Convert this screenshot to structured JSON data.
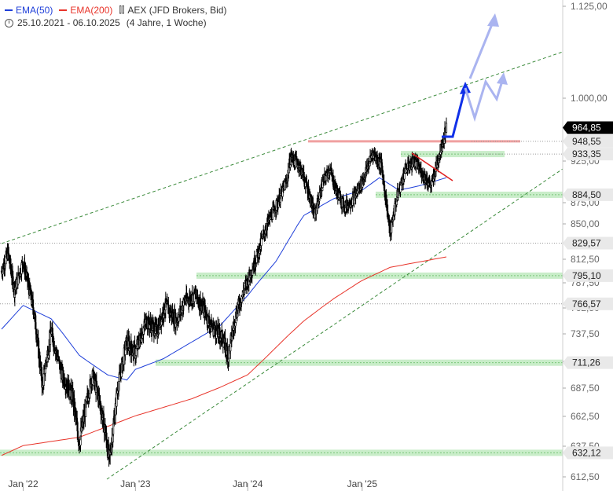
{
  "legend": {
    "ema50": "EMA(50)",
    "ema200": "EMA(200)",
    "instrument": "AEX (JFD Brokers, Bid)",
    "range": "25.10.2021 - 06.10.2025",
    "period": "(4 Jahre, 1 Woche)"
  },
  "colors": {
    "ema50": "#1f3fd9",
    "ema200": "#e8342a",
    "support_zone": "#bfeabf",
    "resistance": "#f0a0a0",
    "projection_main": "#1030e8",
    "projection_alt": "#aab4f0",
    "trend_channel": "#3a8a3a",
    "current_label_bg": "#000000",
    "level_label_bg": "#e9e9e9"
  },
  "chart_data": {
    "type": "candlestick",
    "title": "",
    "xlabel": "",
    "ylabel": "",
    "y_range": [
      605,
      1135
    ],
    "y_ticks": [
      "612,50",
      "637,50",
      "662,50",
      "687,50",
      "712,50",
      "737,50",
      "762,50",
      "787,50",
      "812,50",
      "850,00",
      "875,00",
      "925,00",
      "1.000,00",
      "1.125,00"
    ],
    "x_ticks": [
      {
        "label": "Jan '22",
        "date": "2022-01-03"
      },
      {
        "label": "Jan '23",
        "date": "2023-01-02"
      },
      {
        "label": "Jan '24",
        "date": "2024-01-01"
      },
      {
        "label": "Jan '25",
        "date": "2025-01-06"
      }
    ],
    "x_range": [
      "2021-10-25",
      "2025-10-06"
    ],
    "price_path": [
      [
        "2021-10-25",
        800
      ],
      [
        "2021-11-15",
        820
      ],
      [
        "2021-12-06",
        780
      ],
      [
        "2022-01-03",
        810
      ],
      [
        "2022-02-07",
        760
      ],
      [
        "2022-03-07",
        690
      ],
      [
        "2022-04-04",
        740
      ],
      [
        "2022-05-09",
        700
      ],
      [
        "2022-06-13",
        680
      ],
      [
        "2022-07-04",
        640
      ],
      [
        "2022-08-15",
        700
      ],
      [
        "2022-09-05",
        680
      ],
      [
        "2022-09-26",
        650
      ],
      [
        "2022-10-10",
        625
      ],
      [
        "2022-11-07",
        690
      ],
      [
        "2022-12-05",
        730
      ],
      [
        "2023-01-02",
        720
      ],
      [
        "2023-02-06",
        750
      ],
      [
        "2023-03-13",
        740
      ],
      [
        "2023-04-10",
        765
      ],
      [
        "2023-05-15",
        750
      ],
      [
        "2023-06-12",
        770
      ],
      [
        "2023-07-17",
        775
      ],
      [
        "2023-08-14",
        760
      ],
      [
        "2023-09-04",
        745
      ],
      [
        "2023-10-09",
        735
      ],
      [
        "2023-10-30",
        718
      ],
      [
        "2023-11-27",
        760
      ],
      [
        "2024-01-01",
        790
      ],
      [
        "2024-02-05",
        820
      ],
      [
        "2024-03-04",
        850
      ],
      [
        "2024-04-08",
        875
      ],
      [
        "2024-05-06",
        900
      ],
      [
        "2024-05-20",
        930
      ],
      [
        "2024-06-17",
        920
      ],
      [
        "2024-07-15",
        890
      ],
      [
        "2024-08-05",
        860
      ],
      [
        "2024-09-02",
        900
      ],
      [
        "2024-09-23",
        915
      ],
      [
        "2024-10-14",
        890
      ],
      [
        "2024-11-11",
        870
      ],
      [
        "2024-12-09",
        880
      ],
      [
        "2025-01-06",
        900
      ],
      [
        "2025-02-10",
        935
      ],
      [
        "2025-03-10",
        920
      ],
      [
        "2025-04-07",
        840
      ],
      [
        "2025-04-28",
        880
      ],
      [
        "2025-05-26",
        915
      ],
      [
        "2025-06-23",
        925
      ],
      [
        "2025-07-21",
        910
      ],
      [
        "2025-08-18",
        895
      ],
      [
        "2025-09-08",
        925
      ],
      [
        "2025-10-06",
        964.85
      ]
    ],
    "ema50_path": [
      [
        "2021-10-25",
        742
      ],
      [
        "2022-01-03",
        765
      ],
      [
        "2022-04-04",
        752
      ],
      [
        "2022-07-04",
        718
      ],
      [
        "2022-10-03",
        700
      ],
      [
        "2022-12-05",
        695
      ],
      [
        "2023-01-02",
        705
      ],
      [
        "2023-04-03",
        715
      ],
      [
        "2023-07-03",
        730
      ],
      [
        "2023-10-02",
        745
      ],
      [
        "2024-01-01",
        775
      ],
      [
        "2024-04-01",
        810
      ],
      [
        "2024-07-01",
        860
      ],
      [
        "2024-10-07",
        880
      ],
      [
        "2025-01-06",
        890
      ],
      [
        "2025-03-03",
        905
      ],
      [
        "2025-05-05",
        890
      ],
      [
        "2025-07-07",
        895
      ],
      [
        "2025-10-06",
        905
      ]
    ],
    "ema200_path": [
      [
        "2021-10-25",
        630
      ],
      [
        "2022-01-03",
        638
      ],
      [
        "2022-07-04",
        645
      ],
      [
        "2023-01-02",
        663
      ],
      [
        "2023-07-03",
        678
      ],
      [
        "2023-10-02",
        688
      ],
      [
        "2024-01-01",
        700
      ],
      [
        "2024-04-01",
        725
      ],
      [
        "2024-07-01",
        750
      ],
      [
        "2024-10-07",
        772
      ],
      [
        "2025-01-06",
        790
      ],
      [
        "2025-04-07",
        804
      ],
      [
        "2025-10-06",
        815
      ]
    ],
    "current_price": "964,85",
    "levels": [
      {
        "label": "948,55",
        "value": 948.55,
        "kind": "resistance"
      },
      {
        "label": "933,35",
        "value": 933.35,
        "kind": "support"
      },
      {
        "label": "884,50",
        "value": 884.5,
        "kind": "support"
      },
      {
        "label": "829,57",
        "value": 829.57,
        "kind": "line"
      },
      {
        "label": "795,10",
        "value": 795.1,
        "kind": "support"
      },
      {
        "label": "766,57",
        "value": 766.57,
        "kind": "line"
      },
      {
        "label": "711,26",
        "value": 711.26,
        "kind": "support"
      },
      {
        "label": "632,12",
        "value": 632.12,
        "kind": "support"
      }
    ]
  }
}
